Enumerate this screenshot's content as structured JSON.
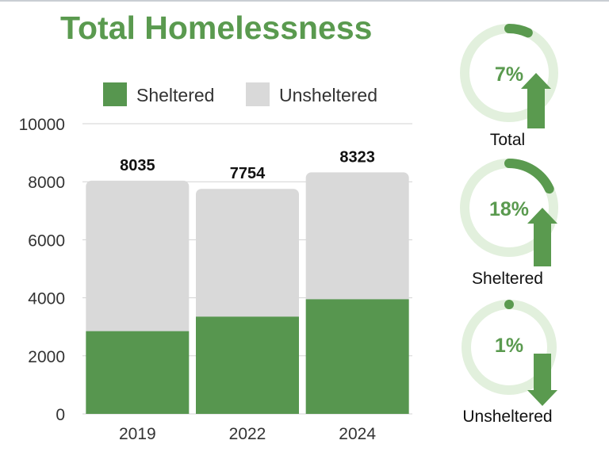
{
  "title": "Total Homelessness",
  "chart_data": {
    "type": "bar",
    "stacked": true,
    "categories": [
      "2019",
      "2022",
      "2024"
    ],
    "series": [
      {
        "name": "Sheltered",
        "values": [
          2850,
          3350,
          3950
        ],
        "color": "#57964f"
      },
      {
        "name": "Unsheltered",
        "values": [
          5185,
          4404,
          4373
        ],
        "color": "#d9d9d9"
      }
    ],
    "totals": [
      "8035",
      "7754",
      "8323"
    ],
    "total_values": [
      8035,
      7754,
      8323
    ],
    "ylim": [
      0,
      10000
    ],
    "yticks": [
      0,
      2000,
      4000,
      6000,
      8000,
      10000
    ],
    "ytick_labels": [
      "0",
      "2000",
      "4000",
      "6000",
      "8000",
      "10000"
    ],
    "grid": true,
    "legend": "top"
  },
  "gauges": [
    {
      "value": "7%",
      "fraction": 0.07,
      "direction": "up",
      "label": "Total"
    },
    {
      "value": "18%",
      "fraction": 0.18,
      "direction": "up",
      "label": "Sheltered"
    },
    {
      "value": "1%",
      "fraction": 0.01,
      "direction": "down",
      "label": "Unsheltered"
    }
  ],
  "colors": {
    "accent": "#5a9a4f",
    "ring": "#e2f0dd",
    "bar_grey": "#d9d9d9",
    "bar_green": "#57964f"
  }
}
